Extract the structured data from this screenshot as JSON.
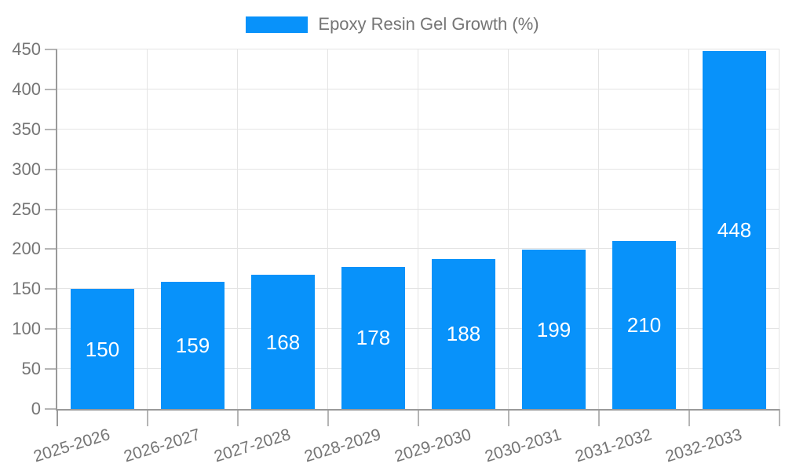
{
  "legend": {
    "label": "Epoxy Resin Gel Growth (%)"
  },
  "chart_data": {
    "type": "bar",
    "title": "",
    "xlabel": "",
    "ylabel": "",
    "categories": [
      "2025-2026",
      "2026-2027",
      "2027-2028",
      "2028-2029",
      "2029-2030",
      "2030-2031",
      "2031-2032",
      "2032-2033"
    ],
    "series": [
      {
        "name": "Epoxy Resin Gel Growth (%)",
        "values": [
          150,
          159,
          168,
          178,
          188,
          199,
          210,
          448
        ]
      }
    ],
    "value_labels": [
      "150",
      "159",
      "168",
      "178",
      "188",
      "199",
      "210",
      "448"
    ],
    "ylim": [
      0,
      450
    ],
    "yticks": [
      0,
      50,
      100,
      150,
      200,
      250,
      300,
      350,
      400,
      450
    ],
    "grid": true,
    "legend_position": "top-center"
  },
  "colors": {
    "bar": "#0892fa",
    "grid": "#e4e4e4",
    "axis": "#9a9a9a",
    "tick": "#b5b5b5",
    "text": "#757575",
    "value_label": "#ffffff",
    "background": "#ffffff"
  }
}
